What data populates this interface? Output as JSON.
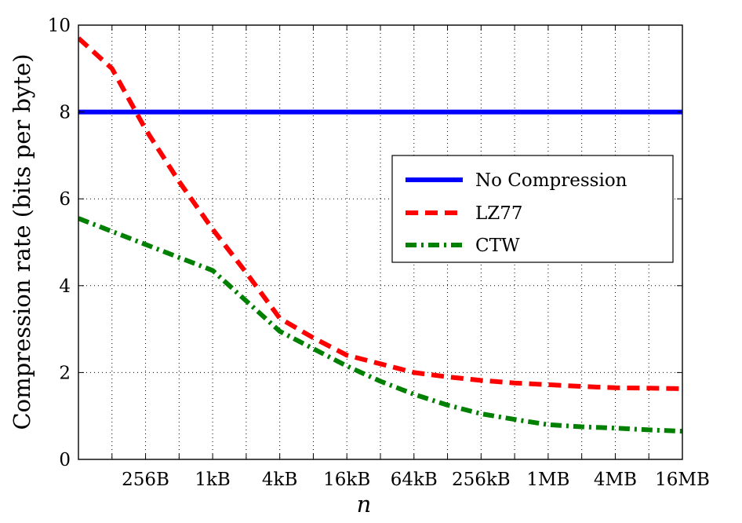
{
  "chart_data": {
    "type": "line",
    "xlabel": "n",
    "ylabel": "Compression rate (bits per byte)",
    "ylim": [
      0,
      10
    ],
    "xscale": "log2",
    "xlim_bytes": [
      64,
      16777216
    ],
    "x_ticks": [
      {
        "label": "256B",
        "bytes": 256
      },
      {
        "label": "1kB",
        "bytes": 1024
      },
      {
        "label": "4kB",
        "bytes": 4096
      },
      {
        "label": "16kB",
        "bytes": 16384
      },
      {
        "label": "64kB",
        "bytes": 65536
      },
      {
        "label": "256kB",
        "bytes": 262144
      },
      {
        "label": "1MB",
        "bytes": 1048576
      },
      {
        "label": "4MB",
        "bytes": 4194304
      },
      {
        "label": "16MB",
        "bytes": 16777216
      }
    ],
    "y_ticks": [
      0,
      2,
      4,
      6,
      8,
      10
    ],
    "grid": true,
    "legend_position": "right",
    "series": [
      {
        "name": "No Compression",
        "color": "#0000ff",
        "style": "solid",
        "x": [
          64,
          16777216
        ],
        "y": [
          8,
          8
        ]
      },
      {
        "name": "LZ77",
        "color": "#ff0000",
        "style": "dashed",
        "x": [
          64,
          128,
          256,
          512,
          1024,
          2048,
          4096,
          8192,
          16384,
          32768,
          65536,
          131072,
          262144,
          524288,
          1048576,
          2097152,
          4194304,
          8388608,
          16777216
        ],
        "y": [
          9.7,
          9.0,
          7.6,
          6.4,
          5.3,
          4.3,
          3.25,
          2.8,
          2.4,
          2.2,
          2.0,
          1.9,
          1.82,
          1.76,
          1.72,
          1.68,
          1.65,
          1.64,
          1.63
        ]
      },
      {
        "name": "CTW",
        "color": "#008000",
        "style": "dash-dot",
        "x": [
          64,
          128,
          256,
          512,
          1024,
          2048,
          4096,
          8192,
          16384,
          32768,
          65536,
          131072,
          262144,
          524288,
          1048576,
          2097152,
          4194304,
          8388608,
          16777216
        ],
        "y": [
          5.55,
          5.25,
          4.95,
          4.65,
          4.35,
          3.65,
          2.95,
          2.55,
          2.15,
          1.8,
          1.5,
          1.25,
          1.05,
          0.92,
          0.8,
          0.75,
          0.72,
          0.68,
          0.65
        ]
      }
    ]
  }
}
